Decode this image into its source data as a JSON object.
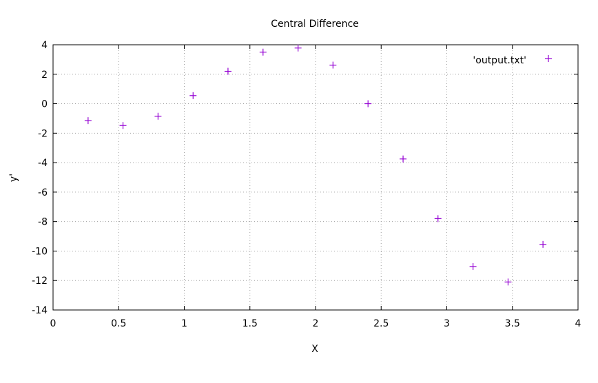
{
  "chart_data": {
    "type": "scatter",
    "title": "Central Difference",
    "xlabel": "X",
    "ylabel": "y'",
    "xlim": [
      0,
      4
    ],
    "ylim": [
      -14,
      4
    ],
    "x_ticks": [
      0,
      0.5,
      1,
      1.5,
      2,
      2.5,
      3,
      3.5,
      4
    ],
    "y_ticks": [
      -14,
      -12,
      -10,
      -8,
      -6,
      -4,
      -2,
      0,
      2,
      4
    ],
    "grid": true,
    "legend_position": "top-right",
    "series": [
      {
        "name": "'output.txt'",
        "color": "#9400d3",
        "marker": "plus",
        "points": [
          [
            0.267,
            -1.15
          ],
          [
            0.533,
            -1.48
          ],
          [
            0.8,
            -0.85
          ],
          [
            1.067,
            0.55
          ],
          [
            1.333,
            2.2
          ],
          [
            1.6,
            3.5
          ],
          [
            1.867,
            3.78
          ],
          [
            2.133,
            2.62
          ],
          [
            2.4,
            0.0
          ],
          [
            2.667,
            -3.75
          ],
          [
            2.933,
            -7.8
          ],
          [
            3.2,
            -11.05
          ],
          [
            3.467,
            -12.1
          ],
          [
            3.733,
            -9.55
          ]
        ]
      }
    ]
  }
}
